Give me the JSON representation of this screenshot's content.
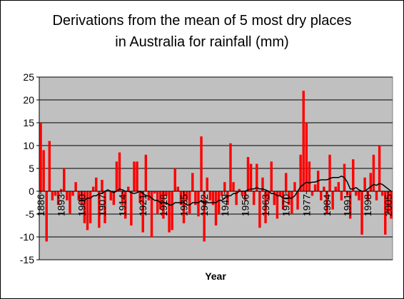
{
  "chart_data": {
    "type": "bar",
    "title": "Derivations from the mean of 5 most dry places in Australia for rainfall (mm)",
    "x_label": "Year",
    "categories": [
      "1886",
      null,
      null,
      null,
      null,
      null,
      null,
      "1893",
      null,
      null,
      null,
      null,
      null,
      null,
      "1900",
      null,
      null,
      null,
      null,
      null,
      null,
      "1907",
      null,
      null,
      null,
      null,
      null,
      null,
      "1914",
      null,
      null,
      null,
      null,
      null,
      null,
      "1921",
      null,
      null,
      null,
      null,
      null,
      null,
      "1928",
      null,
      null,
      null,
      null,
      null,
      null,
      "1935",
      null,
      null,
      null,
      null,
      null,
      null,
      "1942",
      null,
      null,
      null,
      null,
      null,
      null,
      "1949",
      null,
      null,
      null,
      null,
      null,
      null,
      "1956",
      null,
      null,
      null,
      null,
      null,
      null,
      "1963",
      null,
      null,
      null,
      null,
      null,
      null,
      "1970",
      null,
      null,
      null,
      null,
      null,
      null,
      "1977",
      null,
      null,
      null,
      null,
      null,
      null,
      "1984",
      null,
      null,
      null,
      null,
      null,
      null,
      "1991",
      null,
      null,
      null,
      null,
      null,
      null,
      "1998",
      null,
      null,
      null,
      null,
      null,
      null,
      "2005",
      null
    ],
    "series": [
      {
        "type": "bar",
        "color": "#ff0000",
        "values": [
          15,
          9,
          -11,
          11,
          -2,
          -1,
          -3,
          0.5,
          5,
          -2,
          -5,
          -1,
          2,
          -2,
          -3,
          -7,
          -8.5,
          -7,
          1,
          3,
          -8,
          2.5,
          -7,
          0,
          -2,
          -3,
          6.5,
          8.5,
          -3,
          -6,
          1,
          -7.5,
          6.5,
          6.5,
          -2.5,
          -9,
          8,
          -2,
          -10,
          -0.5,
          -5,
          -4,
          -6,
          -1,
          -9,
          -8.5,
          5,
          1,
          -3,
          -7,
          -2,
          -5,
          4,
          -3,
          -5.5,
          12,
          -11,
          3,
          -2,
          -3,
          -7.5,
          -5,
          -1,
          2,
          -3,
          10.5,
          2,
          -3,
          0.5,
          -1,
          -2,
          7.5,
          6,
          -3,
          6,
          -8,
          3,
          -7,
          -2,
          6.5,
          -3,
          -6,
          -1,
          -4,
          4,
          -3,
          -5,
          2,
          -4,
          8,
          22,
          15,
          6.5,
          -1,
          1.5,
          4.5,
          -2,
          1,
          -5,
          8,
          -4,
          1,
          2,
          -2,
          6,
          -1,
          -6,
          7,
          -1,
          -2,
          -9.5,
          3,
          -2,
          4,
          8,
          -2,
          10,
          -1,
          -9.5,
          -5,
          -6
        ]
      },
      {
        "type": "line",
        "color": "#000000",
        "values": [
          null,
          null,
          null,
          null,
          null,
          null,
          null,
          null,
          null,
          null,
          null,
          null,
          null,
          -2,
          -2,
          -2,
          -1.5,
          -1.5,
          -1,
          -1,
          -0.5,
          -0.5,
          0,
          0.3,
          0,
          -0.3,
          0,
          0.5,
          0.3,
          0,
          0,
          -0.3,
          -0.5,
          -0.3,
          0,
          -0.5,
          -1,
          -1,
          -1.5,
          -2,
          -2,
          -2.5,
          -2.5,
          -2.5,
          -3,
          -3,
          -2.5,
          -2.5,
          -2.5,
          -2.5,
          -3,
          -3,
          -2.5,
          -2.5,
          -2.5,
          -2,
          -2.5,
          -2.5,
          -2.5,
          -2.5,
          -2.5,
          -2,
          -2,
          -1.5,
          -1,
          -1,
          -0.5,
          -0.5,
          0,
          0,
          0,
          0.3,
          0.5,
          0.5,
          0.8,
          0.5,
          0.5,
          0.3,
          0,
          -0.5,
          -0.5,
          -1,
          -1,
          -1.5,
          -1.5,
          -1.5,
          -1.5,
          -1,
          0,
          1,
          1.5,
          2,
          1.8,
          2,
          2,
          2.3,
          2.5,
          2.5,
          2.5,
          2.8,
          3,
          3,
          3,
          3.3,
          3,
          2,
          0.5,
          0.5,
          0.8,
          0.3,
          0,
          0,
          0.5,
          1,
          1.5,
          1.3,
          1.7,
          1.5,
          1,
          0.5,
          0
        ]
      }
    ],
    "ylim": [
      -15,
      25
    ],
    "yticks": [
      -15,
      -10,
      -5,
      0,
      5,
      10,
      15,
      20,
      25
    ],
    "grid": true
  }
}
